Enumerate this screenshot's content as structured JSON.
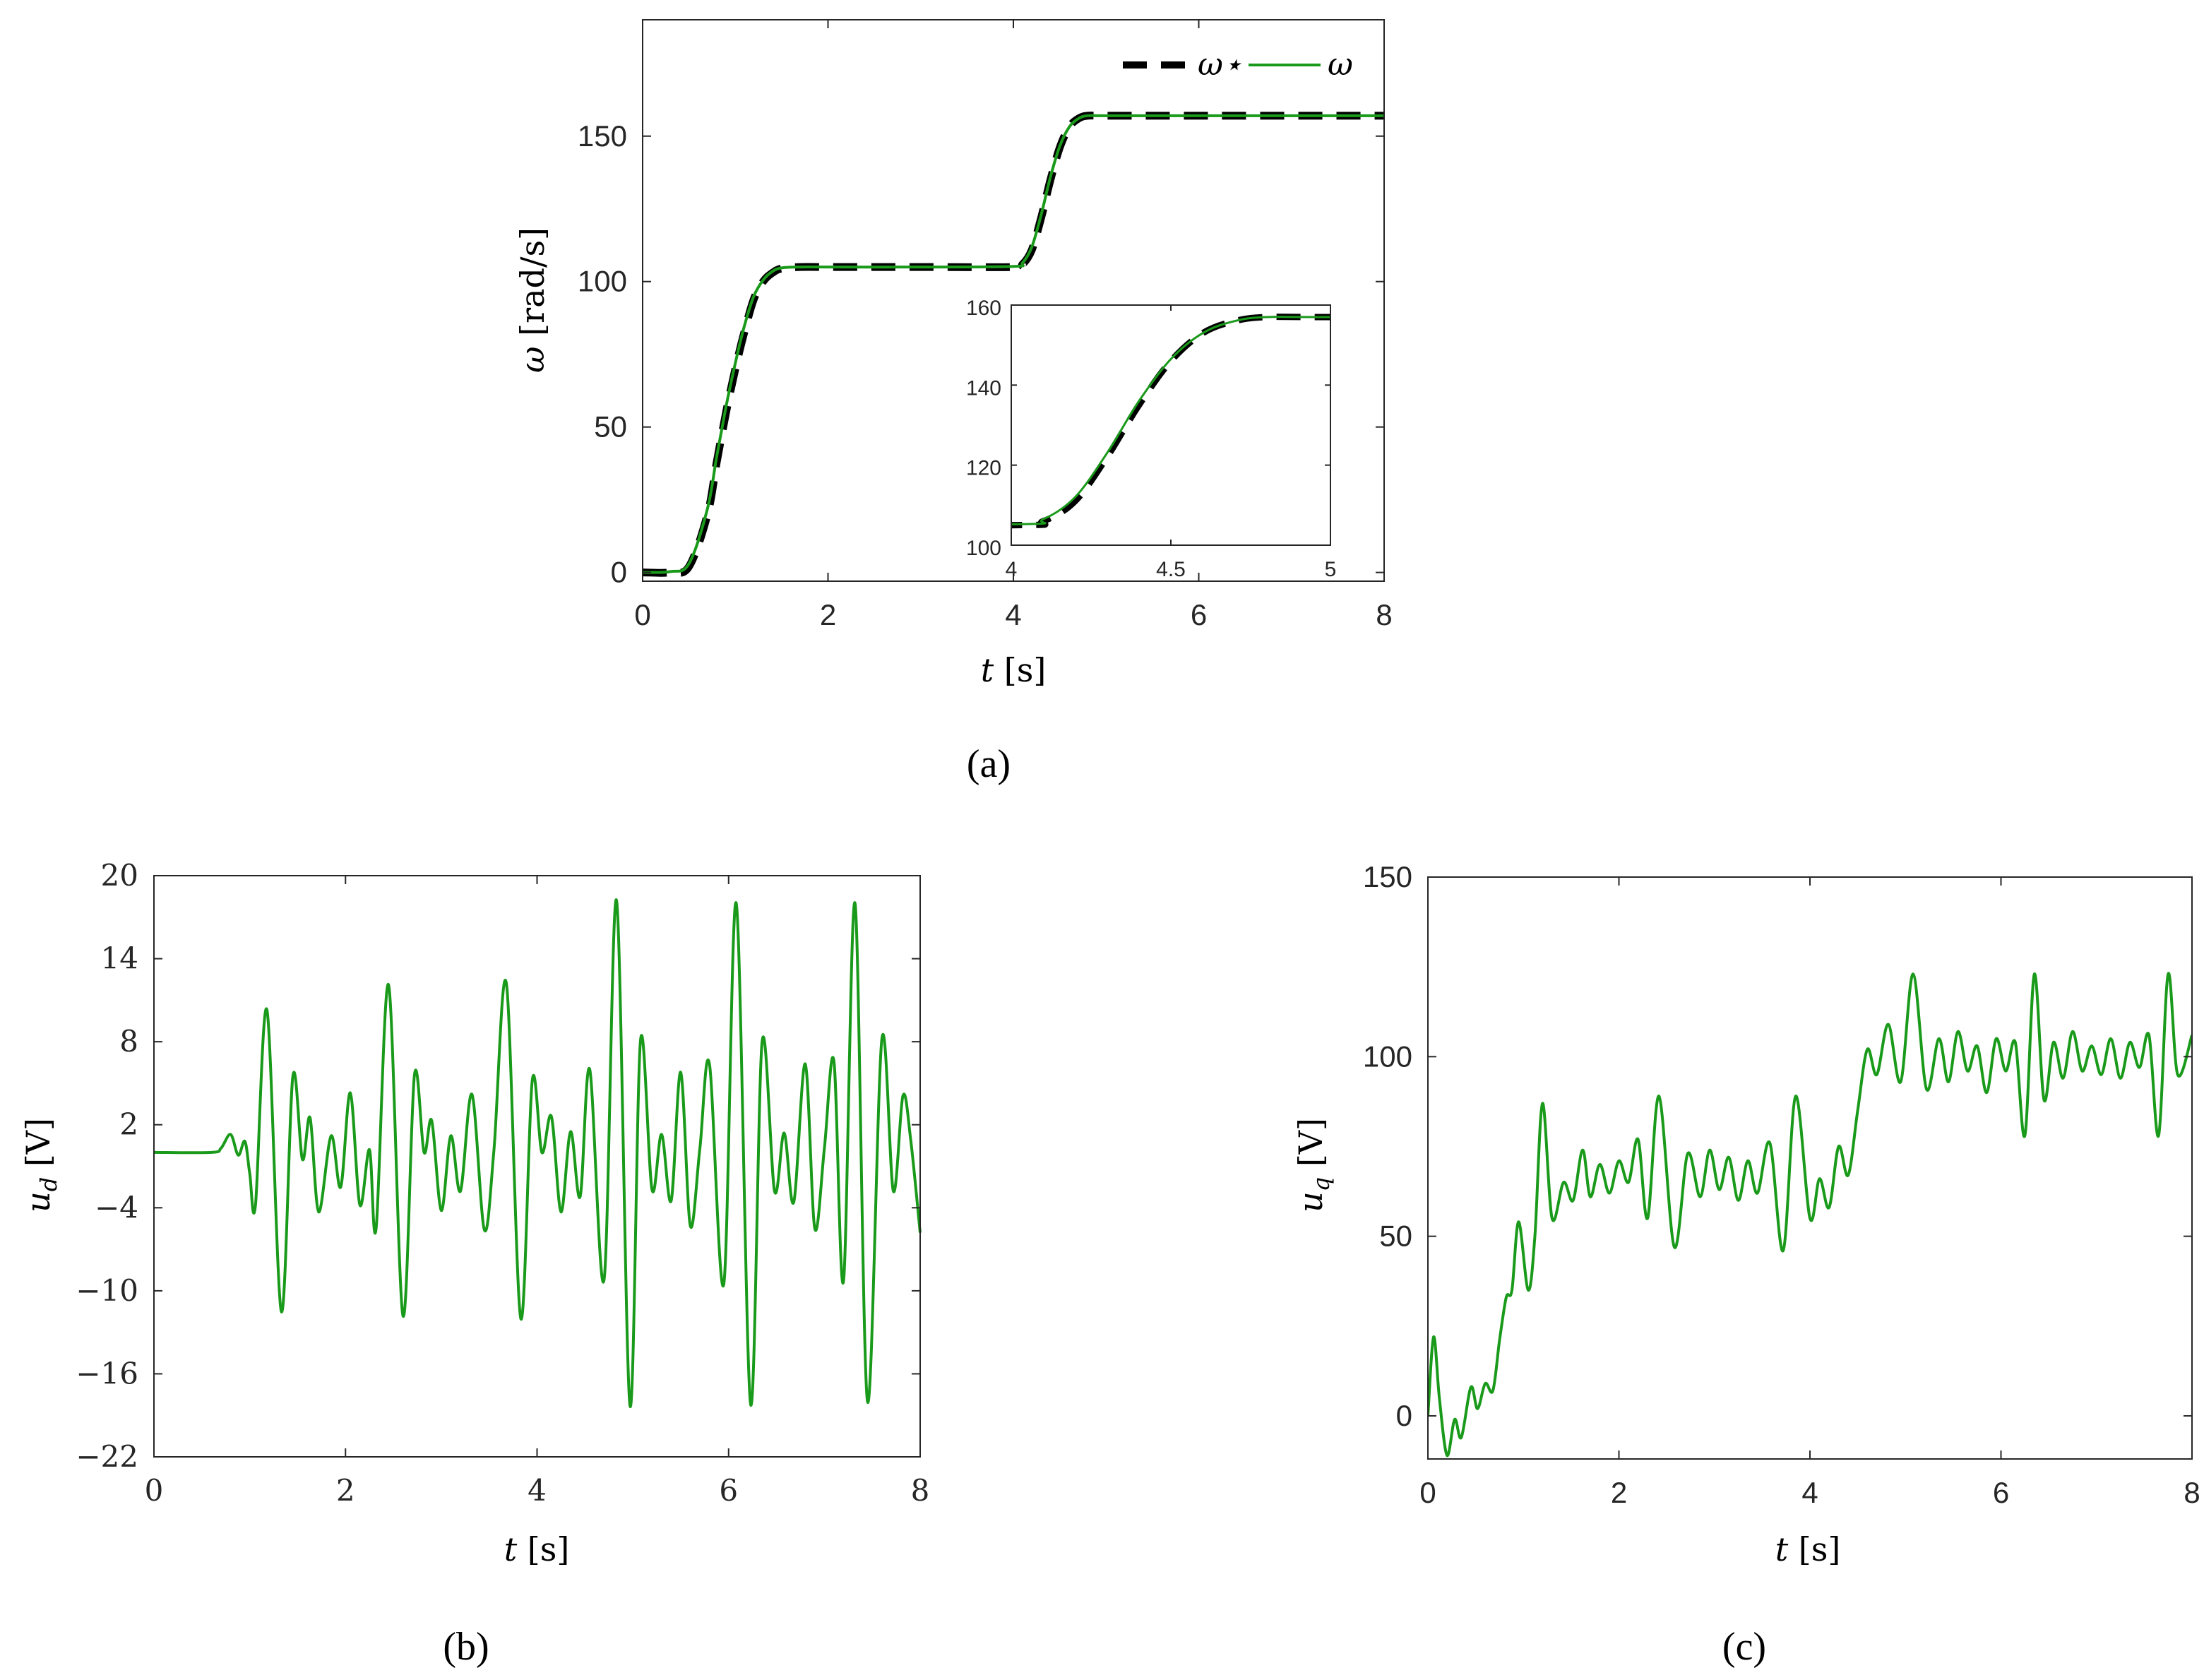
{
  "chart_data": [
    {
      "id": "a",
      "type": "line",
      "caption": "(a)",
      "xlabel_var": "t",
      "xlabel_unit": " [s]",
      "ylabel_var": "ω",
      "ylabel_unit": " [rad/s]",
      "xlim": [
        0,
        8
      ],
      "ylim": [
        -3,
        190
      ],
      "xticks": [
        0,
        2,
        4,
        6,
        8
      ],
      "xtick_labels": [
        "0",
        "2",
        "4",
        "6",
        "8"
      ],
      "yticks": [
        0,
        50,
        100,
        150
      ],
      "ytick_labels": [
        "0",
        "50",
        "100",
        "150"
      ],
      "grid": false,
      "legend": {
        "placement": "top-right",
        "entries": [
          "ω⋆",
          "ω"
        ]
      },
      "series": [
        {
          "name": "ω⋆",
          "style": "dashed",
          "color": "#000000",
          "x": [
            0,
            0.3,
            0.5,
            0.7,
            0.8,
            0.9,
            1.0,
            1.1,
            1.2,
            1.3,
            1.4,
            1.5,
            1.7,
            2.0,
            3.0,
            4.0,
            4.1,
            4.2,
            4.3,
            4.4,
            4.5,
            4.6,
            4.7,
            4.8,
            5.0,
            6.0,
            8.0
          ],
          "y": [
            0,
            0,
            2,
            20,
            38,
            55,
            70,
            83,
            94,
            100,
            103,
            104.5,
            105,
            105,
            105,
            105,
            106,
            111,
            122,
            135,
            146,
            153,
            156,
            157,
            157,
            157,
            157
          ]
        },
        {
          "name": "ω",
          "style": "solid",
          "color": "#1a9a1a",
          "x": [
            0,
            0.3,
            0.5,
            0.7,
            0.8,
            0.9,
            1.0,
            1.1,
            1.2,
            1.3,
            1.4,
            1.5,
            1.7,
            2.0,
            3.0,
            4.0,
            4.1,
            4.2,
            4.3,
            4.4,
            4.5,
            4.6,
            4.7,
            4.8,
            5.0,
            6.0,
            8.0
          ],
          "y": [
            0,
            0.3,
            3,
            22,
            40,
            57,
            72,
            85,
            95,
            100.5,
            103.5,
            104.7,
            105,
            105,
            105,
            105.2,
            106.5,
            112,
            123,
            136,
            146.5,
            153,
            156,
            157,
            157,
            157,
            157
          ]
        }
      ],
      "inset": {
        "xlim": [
          4,
          5
        ],
        "ylim": [
          100,
          160
        ],
        "xticks": [
          4,
          4.5,
          5
        ],
        "xtick_labels": [
          "4",
          "4.5",
          "5"
        ],
        "yticks": [
          100,
          120,
          140,
          160
        ],
        "ytick_labels": [
          "100",
          "120",
          "140",
          "160"
        ]
      }
    },
    {
      "id": "b",
      "type": "line",
      "caption": "(b)",
      "xlabel_var": "t",
      "xlabel_unit": " [s]",
      "ylabel_var": "u",
      "ylabel_sub": "d",
      "ylabel_unit": " [V]",
      "xlim": [
        0,
        8
      ],
      "ylim": [
        -22,
        20
      ],
      "xticks": [
        0,
        2,
        4,
        6,
        8
      ],
      "xtick_labels": [
        "0",
        "2",
        "4",
        "6",
        "8"
      ],
      "yticks": [
        20,
        14,
        8,
        2,
        -4,
        -10,
        -16,
        -22
      ],
      "ytick_labels": [
        "20",
        "14",
        "8",
        "2",
        "−4",
        "−10",
        "−16",
        "−22"
      ],
      "grid": false,
      "series": [
        {
          "color": "#1a9a1a",
          "x": [
            0,
            0.6,
            0.7,
            0.8,
            0.88,
            0.95,
            1.0,
            1.06,
            1.18,
            1.33,
            1.45,
            1.55,
            1.63,
            1.72,
            1.85,
            1.95,
            2.05,
            2.15,
            2.25,
            2.32,
            2.45,
            2.6,
            2.72,
            2.82,
            2.9,
            3.0,
            3.1,
            3.2,
            3.32,
            3.45,
            3.55,
            3.68,
            3.83,
            3.95,
            4.05,
            4.15,
            4.25,
            4.35,
            4.45,
            4.55,
            4.7,
            4.83,
            4.97,
            5.08,
            5.2,
            5.3,
            5.4,
            5.5,
            5.6,
            5.7,
            5.8,
            5.95,
            6.08,
            6.23,
            6.35,
            6.48,
            6.58,
            6.68,
            6.8,
            6.9,
            7.0,
            7.1,
            7.2,
            7.32,
            7.45,
            7.6,
            7.72,
            7.82,
            7.9,
            8.0
          ],
          "y": [
            0,
            0,
            0.3,
            1.3,
            -0.2,
            0.8,
            -1.5,
            -3.8,
            10.3,
            -11.5,
            5.5,
            -0.5,
            2.5,
            -4.3,
            1.2,
            -2.5,
            4.3,
            -3.8,
            0.2,
            -5.5,
            12.1,
            -11.8,
            5.6,
            0,
            2.3,
            -4.2,
            1.2,
            -2.8,
            4.2,
            -5.6,
            0.2,
            12.2,
            -12.0,
            5.2,
            0,
            2.6,
            -4.3,
            1.5,
            -3.2,
            6.0,
            -9.2,
            18.2,
            -18.3,
            8.1,
            -2.7,
            1.3,
            -3.5,
            5.8,
            -5.3,
            0.3,
            6.4,
            -9.5,
            18.0,
            -18.2,
            8.0,
            -2.8,
            1.4,
            -3.6,
            6.4,
            -5.5,
            0.3,
            6.6,
            -9.3,
            18.0,
            -18.0,
            8.2,
            -2.8,
            4.1,
            1.0,
            -5.8
          ]
        }
      ]
    },
    {
      "id": "c",
      "type": "line",
      "caption": "(c)",
      "xlabel_var": "t",
      "xlabel_unit": " [s]",
      "ylabel_var": "u",
      "ylabel_sub": "q",
      "ylabel_unit": " [V]",
      "xlim": [
        0,
        8
      ],
      "ylim": [
        -12,
        150
      ],
      "xticks": [
        0,
        2,
        4,
        6,
        8
      ],
      "xtick_labels": [
        "0",
        "2",
        "4",
        "6",
        "8"
      ],
      "yticks": [
        0,
        50,
        100,
        150
      ],
      "ytick_labels": [
        "0",
        "50",
        "100",
        "150"
      ],
      "grid": false,
      "series": [
        {
          "color": "#1a9a1a",
          "x": [
            0,
            0.06,
            0.12,
            0.2,
            0.28,
            0.35,
            0.45,
            0.52,
            0.6,
            0.68,
            0.75,
            0.82,
            0.88,
            0.95,
            1.05,
            1.12,
            1.2,
            1.3,
            1.42,
            1.52,
            1.62,
            1.7,
            1.8,
            1.9,
            2.0,
            2.1,
            2.2,
            2.3,
            2.42,
            2.58,
            2.72,
            2.85,
            2.95,
            3.05,
            3.15,
            3.25,
            3.35,
            3.45,
            3.58,
            3.72,
            3.85,
            4.0,
            4.1,
            4.2,
            4.3,
            4.4,
            4.5,
            4.6,
            4.7,
            4.82,
            4.95,
            5.08,
            5.22,
            5.35,
            5.45,
            5.55,
            5.65,
            5.75,
            5.85,
            5.95,
            6.05,
            6.15,
            6.25,
            6.35,
            6.45,
            6.55,
            6.65,
            6.75,
            6.85,
            6.95,
            7.05,
            7.15,
            7.25,
            7.35,
            7.45,
            7.55,
            7.65,
            7.75,
            7.85,
            8.0
          ],
          "y": [
            0,
            22,
            5,
            -11,
            -1,
            -6,
            8,
            2,
            9,
            7,
            21,
            33,
            35,
            54,
            35,
            50,
            87,
            55,
            65,
            60,
            74,
            61,
            70,
            62,
            71,
            65,
            77,
            55,
            89,
            47,
            73,
            61,
            74,
            63,
            72,
            60,
            71,
            62,
            76,
            46,
            89,
            55,
            66,
            58,
            75,
            67,
            85,
            102,
            95,
            109,
            93,
            123,
            91,
            105,
            93,
            107,
            96,
            103,
            90,
            105,
            96,
            104,
            78,
            123,
            88,
            104,
            94,
            107,
            96,
            103,
            95,
            105,
            94,
            104,
            97,
            106,
            78,
            123,
            95,
            106
          ]
        }
      ]
    }
  ]
}
